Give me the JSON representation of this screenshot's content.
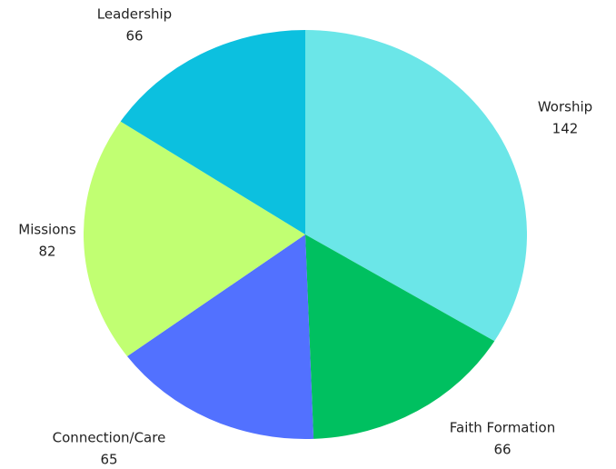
{
  "chart_data": {
    "type": "pie",
    "categories": [
      "Worship",
      "Faith Formation",
      "Connection/Care",
      "Missions",
      "Leadership"
    ],
    "values": [
      142,
      66,
      65,
      82,
      66
    ],
    "colors": [
      "#6be6e8",
      "#00c060",
      "#5271ff",
      "#c1ff72",
      "#0cc0df"
    ]
  }
}
